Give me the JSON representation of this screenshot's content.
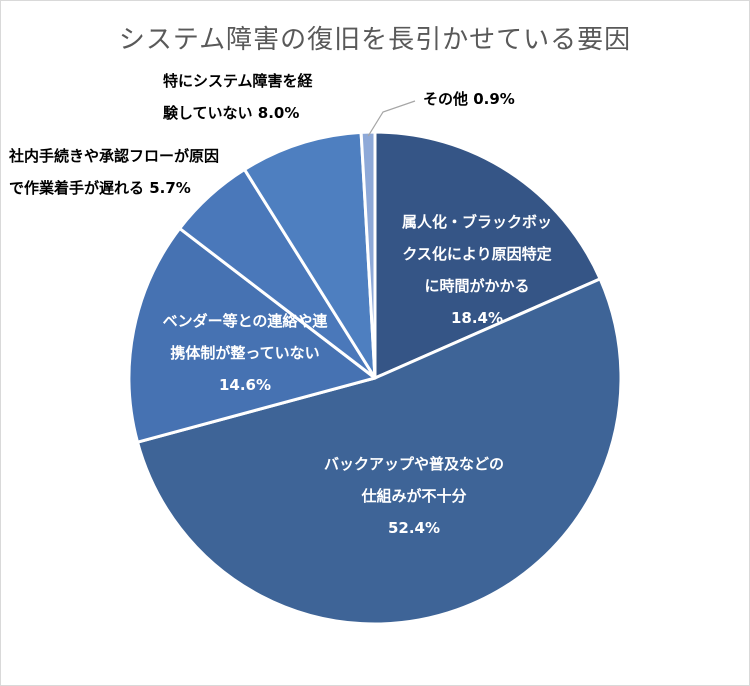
{
  "chart_data": {
    "type": "pie",
    "title": "システム障害の復旧を長引かせている要因",
    "start_angle_deg": 0,
    "direction": "clockwise",
    "slices": [
      {
        "lines": [
          "属人化・ブラックボッ",
          "クス化により原因特定",
          "に時間がかかる"
        ],
        "value": 18.4,
        "value_label": "18.4%",
        "color": "#355586",
        "label_color": "#ffffff"
      },
      {
        "lines": [
          "バックアップや普及などの",
          "仕組みが不十分"
        ],
        "value": 52.4,
        "value_label": "52.4%",
        "color": "#3e6497",
        "label_color": "#ffffff"
      },
      {
        "lines": [
          "ベンダー等との連絡や連",
          "携体制が整っていない"
        ],
        "value": 14.6,
        "value_label": "14.6%",
        "color": "#4672b2",
        "label_color": "#ffffff"
      },
      {
        "lines": [
          "社内手続きや承認フローが原因",
          "で作業着手が遅れる"
        ],
        "value": 5.7,
        "value_label": "5.7%",
        "color": "#4a78ba",
        "label_color": "#000000"
      },
      {
        "lines": [
          "特にシステム障害を経",
          "験していない"
        ],
        "value": 8.0,
        "value_label": "8.0%",
        "color": "#4e7fc0",
        "label_color": "#000000"
      },
      {
        "lines": [
          "その他"
        ],
        "value": 0.9,
        "value_label": "0.9%",
        "color": "#8ea9d8",
        "label_color": "#000000"
      }
    ]
  }
}
